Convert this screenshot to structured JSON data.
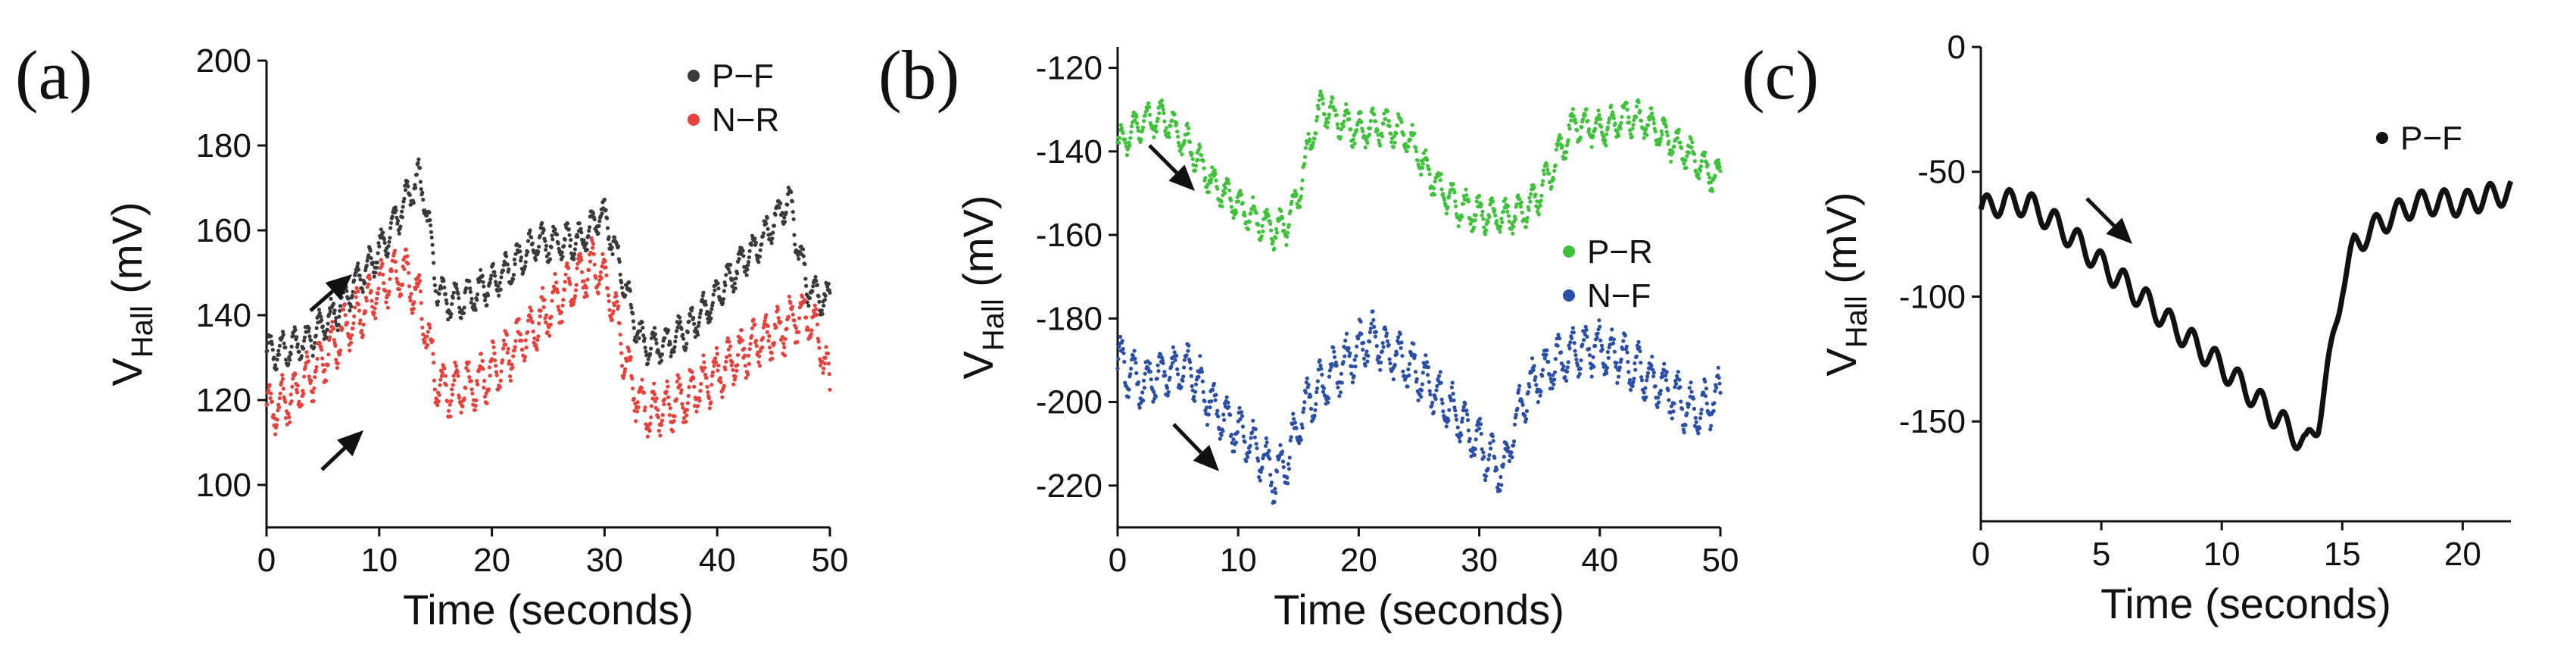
{
  "chart_data": [
    {
      "id": "a",
      "type": "scatter",
      "panel_label": "(a)",
      "xlabel": "Time (seconds)",
      "ylabel": "V",
      "ylabel_sub": "Hall",
      "ylabel_unit": " (mV)",
      "xlim": [
        0,
        50
      ],
      "ylim": [
        90,
        200
      ],
      "xticks": [
        0,
        10,
        20,
        30,
        40,
        50
      ],
      "yticks": [
        100,
        120,
        140,
        160,
        180,
        200
      ],
      "legend_position": "top-right",
      "series": [
        {
          "name": "P−F",
          "color": "#3a3a3a",
          "x": [
            0,
            2,
            4,
            6,
            8,
            10,
            11,
            12,
            13,
            13.5,
            14,
            14.5,
            15,
            16,
            18,
            20,
            22,
            24,
            26,
            28,
            29,
            29.5,
            30,
            31,
            32,
            33,
            34,
            36,
            38,
            40,
            42,
            44,
            45,
            46,
            46.5,
            47,
            48,
            49,
            50
          ],
          "y": [
            131,
            132,
            135,
            140,
            148,
            155,
            160,
            165,
            170,
            172,
            168,
            160,
            148,
            143,
            144,
            148,
            152,
            157,
            157,
            158,
            161,
            164,
            163,
            155,
            145,
            135,
            132,
            134,
            138,
            145,
            152,
            158,
            162,
            166,
            167,
            158,
            147,
            145,
            143
          ],
          "wobble": 3.5
        },
        {
          "name": "N−R",
          "color": "#e8403a",
          "x": [
            0,
            2,
            4,
            6,
            8,
            10,
            11,
            12,
            13,
            14,
            14.5,
            15,
            16,
            18,
            20,
            22,
            24,
            26,
            28,
            29,
            29.5,
            30,
            31,
            32,
            33,
            34,
            36,
            38,
            40,
            42,
            44,
            46,
            47,
            48,
            49,
            50
          ],
          "y": [
            117,
            120,
            126,
            133,
            140,
            146,
            149,
            150,
            147,
            140,
            132,
            125,
            122,
            123,
            127,
            132,
            138,
            144,
            149,
            152,
            151,
            148,
            140,
            128,
            120,
            117,
            119,
            122,
            126,
            131,
            134,
            137,
            140,
            140,
            136,
            122
          ],
          "wobble": 5
        }
      ],
      "annotations": [
        "arrow-up-right",
        "arrow-up-right"
      ]
    },
    {
      "id": "b",
      "type": "scatter",
      "panel_label": "(b)",
      "xlabel": "Time (seconds)",
      "ylabel": "V",
      "ylabel_sub": "Hall",
      "ylabel_unit": " (mV)",
      "xlim": [
        0,
        50
      ],
      "ylim": [
        -230,
        -115
      ],
      "xticks": [
        0,
        10,
        20,
        30,
        40,
        50
      ],
      "yticks": [
        -220,
        -200,
        -180,
        -160,
        -140,
        -120
      ],
      "legend_position": "middle-right",
      "series": [
        {
          "name": "P−R",
          "color": "#3ec23a",
          "x": [
            0,
            2,
            4,
            6,
            8,
            10,
            12,
            13,
            14,
            15,
            16,
            17,
            18,
            20,
            22,
            24,
            26,
            28,
            30,
            32,
            33,
            34,
            35,
            36,
            37,
            38,
            40,
            42,
            44,
            46,
            48,
            50
          ],
          "y": [
            -139,
            -133,
            -132,
            -139,
            -148,
            -153,
            -157,
            -159,
            -158,
            -150,
            -137,
            -129,
            -132,
            -135,
            -134,
            -136,
            -146,
            -153,
            -155,
            -156,
            -155,
            -154,
            -150,
            -145,
            -138,
            -133,
            -135,
            -132,
            -133,
            -138,
            -142,
            -147
          ],
          "wobble": 3.5
        },
        {
          "name": "N−F",
          "color": "#2a4fa8",
          "x": [
            0,
            2,
            4,
            6,
            8,
            10,
            12,
            13,
            14,
            15,
            16,
            18,
            20,
            21,
            22,
            24,
            26,
            28,
            30,
            31,
            32,
            33,
            34,
            36,
            38,
            40,
            42,
            44,
            46,
            48,
            50
          ],
          "y": [
            -190,
            -196,
            -193,
            -192,
            -201,
            -207,
            -213,
            -218,
            -214,
            -206,
            -199,
            -193,
            -187,
            -184,
            -187,
            -191,
            -196,
            -203,
            -210,
            -214,
            -217,
            -205,
            -197,
            -191,
            -188,
            -187,
            -190,
            -194,
            -198,
            -203,
            -198
          ],
          "wobble": 5
        }
      ],
      "annotations": [
        "arrow-down-right",
        "arrow-down-right"
      ]
    },
    {
      "id": "c",
      "type": "line",
      "panel_label": "(c)",
      "xlabel": "Time (seconds)",
      "ylabel": "V",
      "ylabel_sub": "Hall",
      "ylabel_unit": " (mV)",
      "xlim": [
        0,
        22
      ],
      "ylim": [
        -190,
        0
      ],
      "xticks": [
        0,
        5,
        10,
        15,
        20
      ],
      "yticks": [
        0,
        -50,
        -100,
        -150
      ],
      "legend_position": "top-right",
      "series": [
        {
          "name": "P−F",
          "color": "#111111",
          "x": [
            0,
            1,
            2,
            3,
            4,
            5,
            6,
            7,
            8,
            9,
            10,
            11,
            12,
            13,
            13.5,
            14,
            14.5,
            15,
            15.5,
            16,
            17,
            18,
            19,
            20,
            21,
            22
          ],
          "y": [
            -65,
            -62,
            -63,
            -70,
            -78,
            -87,
            -95,
            -103,
            -112,
            -120,
            -128,
            -137,
            -146,
            -155,
            -160,
            -150,
            -125,
            -95,
            -80,
            -75,
            -68,
            -63,
            -62,
            -63,
            -60,
            -58
          ],
          "ripple": 5
        }
      ],
      "annotations": [
        "arrow-down-right"
      ]
    }
  ]
}
